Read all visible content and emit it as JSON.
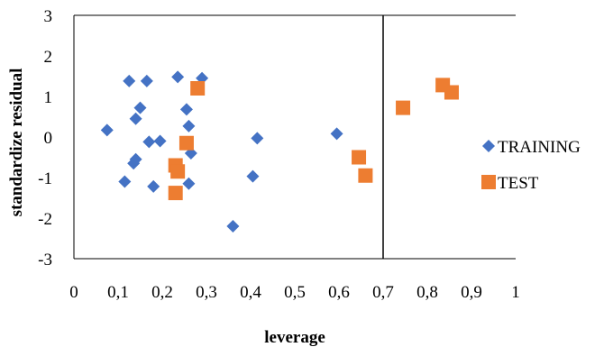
{
  "chart_data": {
    "type": "scatter",
    "xlabel": "leverage",
    "ylabel": "standardize residual",
    "xlim": [
      0,
      1
    ],
    "ylim": [
      -3,
      3
    ],
    "x_ticks": [
      "0",
      "0,1",
      "0,2",
      "0,3",
      "0,4",
      "0,5",
      "0,6",
      "0,7",
      "0,8",
      "0,9",
      "1"
    ],
    "y_ticks": [
      "3",
      "2",
      "1",
      "0",
      "-1",
      "-2",
      "-3"
    ],
    "legend_position": "right",
    "reference_line_x": 0.7,
    "series": [
      {
        "name": "TRAINING",
        "marker": "diamond",
        "color": "#4472C4",
        "points": [
          {
            "x": 0.075,
            "y": 0.17
          },
          {
            "x": 0.115,
            "y": -1.1
          },
          {
            "x": 0.125,
            "y": 1.38
          },
          {
            "x": 0.135,
            "y": -0.65
          },
          {
            "x": 0.14,
            "y": -0.55
          },
          {
            "x": 0.14,
            "y": 0.45
          },
          {
            "x": 0.15,
            "y": 0.72
          },
          {
            "x": 0.165,
            "y": 1.38
          },
          {
            "x": 0.17,
            "y": -0.12
          },
          {
            "x": 0.18,
            "y": -1.22
          },
          {
            "x": 0.195,
            "y": -0.1
          },
          {
            "x": 0.235,
            "y": 1.48
          },
          {
            "x": 0.255,
            "y": 0.68
          },
          {
            "x": 0.26,
            "y": -1.15
          },
          {
            "x": 0.26,
            "y": 0.27
          },
          {
            "x": 0.265,
            "y": -0.4
          },
          {
            "x": 0.29,
            "y": 1.45
          },
          {
            "x": 0.36,
            "y": -2.2
          },
          {
            "x": 0.405,
            "y": -0.97
          },
          {
            "x": 0.415,
            "y": -0.03
          },
          {
            "x": 0.595,
            "y": 0.08
          }
        ]
      },
      {
        "name": "TEST",
        "marker": "square",
        "color": "#ED7D31",
        "points": [
          {
            "x": 0.23,
            "y": -0.7
          },
          {
            "x": 0.235,
            "y": -0.85
          },
          {
            "x": 0.23,
            "y": -1.38
          },
          {
            "x": 0.255,
            "y": -0.15
          },
          {
            "x": 0.28,
            "y": 1.2
          },
          {
            "x": 0.645,
            "y": -0.5
          },
          {
            "x": 0.66,
            "y": -0.95
          },
          {
            "x": 0.745,
            "y": 0.72
          },
          {
            "x": 0.835,
            "y": 1.28
          },
          {
            "x": 0.855,
            "y": 1.1
          }
        ]
      }
    ]
  }
}
